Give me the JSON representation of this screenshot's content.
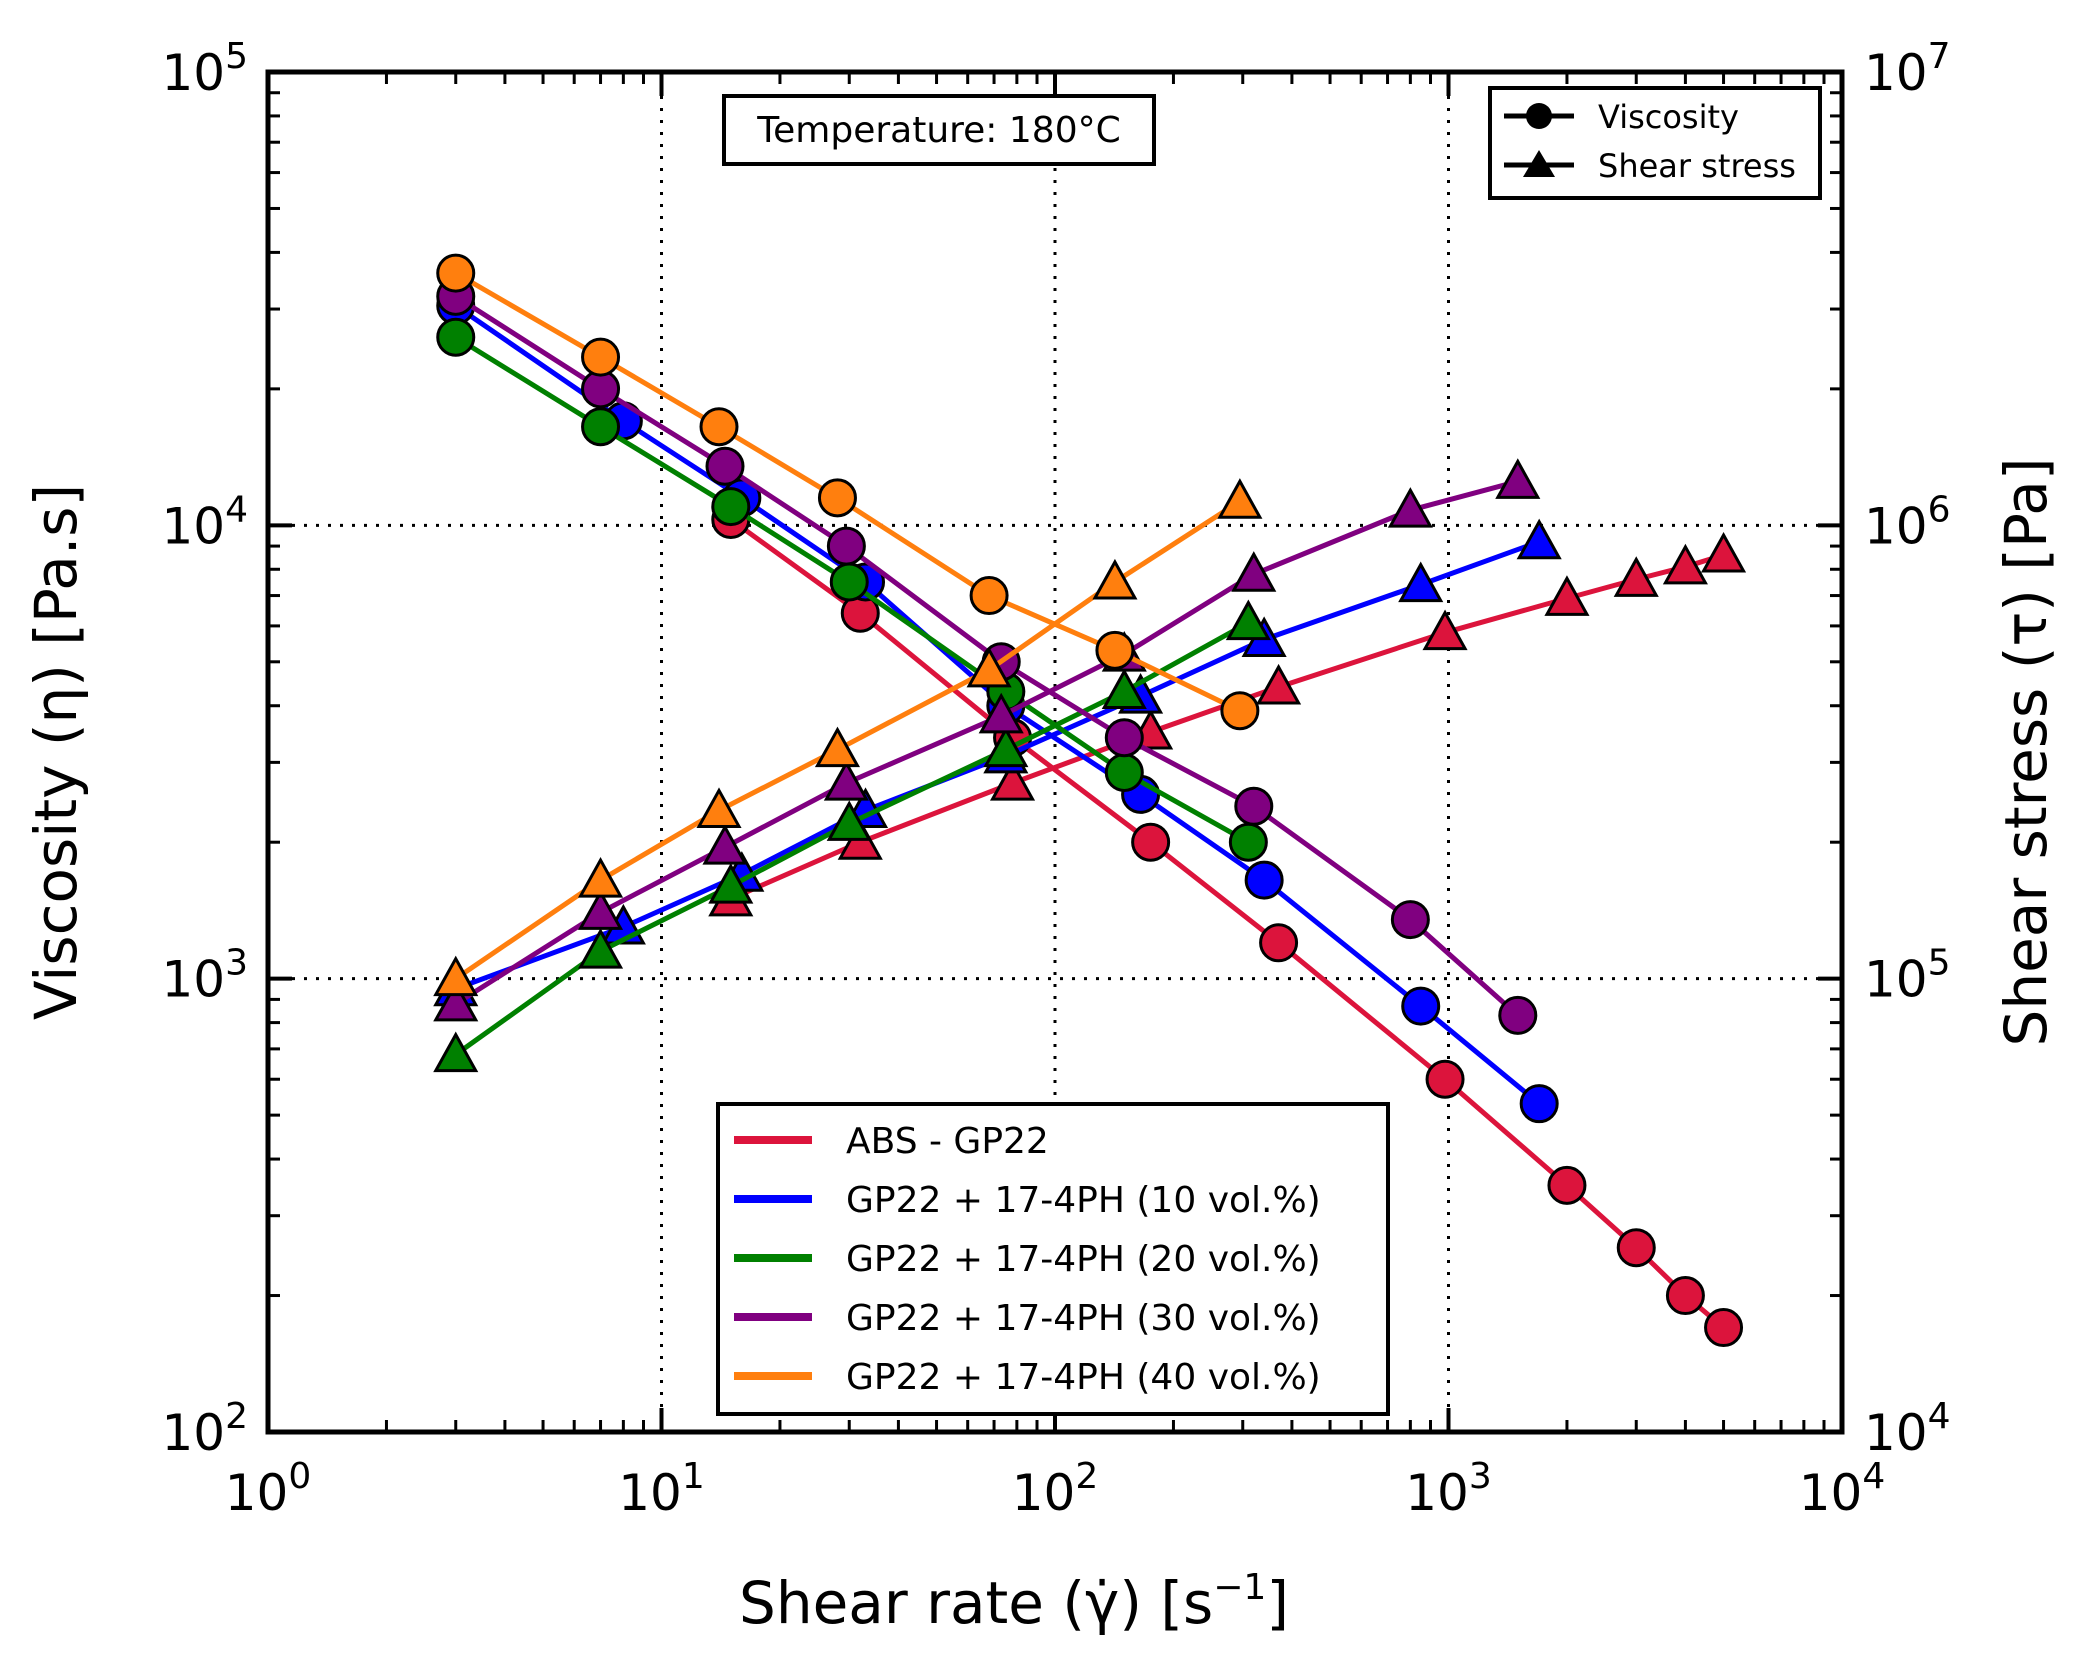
{
  "colors": {
    "ABS - GP22": "#dc143c",
    "GP22 + 17-4PH (10 vol.%)": "#0000ff",
    "GP22 + 17-4PH (20 vol.%)": "#008000",
    "GP22 + 17-4PH (30 vol.%)": "#800080",
    "GP22 + 17-4PH (40 vol.%)": "#ff7f0e"
  },
  "chart_data": {
    "type": "line",
    "annotation": "Temperature: 180°C",
    "xlabel": {
      "main": "Shear rate (γ̇) [s",
      "sup": "−1",
      "end": "]"
    },
    "ylabel_left": "Viscosity (η) [Pa.s]",
    "ylabel_right": "Shear stress (τ) [Pa]",
    "x_scale": "log",
    "xlim": [
      1,
      10000
    ],
    "y_left_scale": "log",
    "y_left_lim": [
      100,
      100000
    ],
    "y_right_scale": "log",
    "y_right_lim": [
      10000,
      10000000
    ],
    "grid": "major dotted",
    "x_ticks": [
      {
        "value": 1,
        "base": "10",
        "exp": "0"
      },
      {
        "value": 10,
        "base": "10",
        "exp": "1"
      },
      {
        "value": 100,
        "base": "10",
        "exp": "2"
      },
      {
        "value": 1000,
        "base": "10",
        "exp": "3"
      },
      {
        "value": 10000,
        "base": "10",
        "exp": "4"
      }
    ],
    "y_left_ticks": [
      {
        "value": 100,
        "base": "10",
        "exp": "2"
      },
      {
        "value": 1000,
        "base": "10",
        "exp": "3"
      },
      {
        "value": 10000,
        "base": "10",
        "exp": "4"
      },
      {
        "value": 100000,
        "base": "10",
        "exp": "5"
      }
    ],
    "y_right_ticks": [
      {
        "value": 10000,
        "base": "10",
        "exp": "4"
      },
      {
        "value": 100000,
        "base": "10",
        "exp": "5"
      },
      {
        "value": 1000000,
        "base": "10",
        "exp": "6"
      },
      {
        "value": 10000000,
        "base": "10",
        "exp": "7"
      }
    ],
    "marker_legend": [
      {
        "label": "Viscosity",
        "marker": "circle"
      },
      {
        "label": "Shear stress",
        "marker": "triangle"
      }
    ],
    "legend_position": "lower-center",
    "series": [
      {
        "name": "ABS - GP22",
        "viscosity": {
          "x": [
            15,
            32,
            78,
            175,
            370,
            980,
            2000,
            3000,
            4000,
            5000
          ],
          "y": [
            10300,
            6400,
            3400,
            2000,
            1200,
            600,
            350,
            255,
            200,
            170
          ]
        },
        "shear_stress": {
          "x": [
            15,
            32,
            78,
            175,
            370,
            980,
            2000,
            3000,
            4000,
            5000
          ],
          "y": [
            150000,
            200000,
            270000,
            350000,
            440000,
            580000,
            690000,
            760000,
            810000,
            860000
          ]
        }
      },
      {
        "name": "GP22 + 17-4PH (10 vol.%)",
        "viscosity": {
          "x": [
            3,
            8,
            16,
            33,
            75,
            165,
            340,
            850,
            1700
          ],
          "y": [
            30500,
            17000,
            11500,
            7500,
            4000,
            2550,
            1650,
            870,
            530
          ]
        },
        "shear_stress": {
          "x": [
            3,
            8,
            16,
            33,
            75,
            165,
            340,
            850,
            1700
          ],
          "y": [
            95000,
            130000,
            170000,
            235000,
            310000,
            420000,
            560000,
            740000,
            920000
          ]
        }
      },
      {
        "name": "GP22 + 17-4PH (20 vol.%)",
        "viscosity": {
          "x": [
            3,
            7,
            15,
            30,
            75,
            150,
            310
          ],
          "y": [
            26000,
            16500,
            11000,
            7500,
            4300,
            2850,
            2000
          ]
        },
        "shear_stress": {
          "x": [
            3,
            7,
            15,
            30,
            75,
            150,
            310
          ],
          "y": [
            68000,
            115000,
            160000,
            220000,
            320000,
            430000,
            610000
          ]
        }
      },
      {
        "name": "GP22 + 17-4PH (30 vol.%)",
        "viscosity": {
          "x": [
            3,
            7,
            14.5,
            29.5,
            73,
            150,
            320,
            800,
            1500
          ],
          "y": [
            32000,
            20000,
            13500,
            9000,
            5000,
            3400,
            2400,
            1350,
            830
          ]
        },
        "shear_stress": {
          "x": [
            3,
            7,
            14.5,
            29.5,
            73,
            150,
            320,
            800,
            1500
          ],
          "y": [
            88000,
            140000,
            195000,
            270000,
            380000,
            520000,
            780000,
            1080000,
            1250000
          ]
        }
      },
      {
        "name": "GP22 + 17-4PH (40 vol.%)",
        "viscosity": {
          "x": [
            3,
            7,
            14,
            28,
            68,
            142,
            295
          ],
          "y": [
            36000,
            23500,
            16500,
            11500,
            7000,
            5300,
            3900
          ]
        },
        "shear_stress": {
          "x": [
            3,
            7,
            14,
            28,
            68,
            142,
            295
          ],
          "y": [
            100000,
            165000,
            235000,
            320000,
            480000,
            750000,
            1130000
          ]
        }
      }
    ]
  }
}
